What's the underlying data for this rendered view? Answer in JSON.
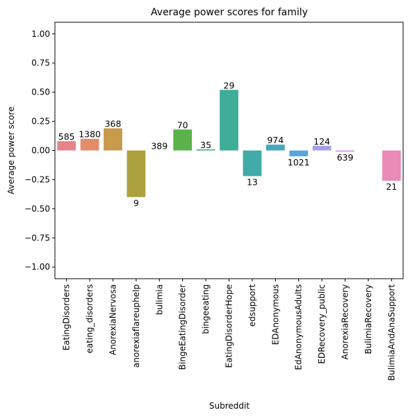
{
  "chart_data": {
    "type": "bar",
    "title": "Average power scores for family",
    "xlabel": "Subreddit",
    "ylabel": "Average power score",
    "ylim": [
      -1.1,
      1.1
    ],
    "yticks": [
      -1.0,
      -0.75,
      -0.5,
      -0.25,
      0.0,
      0.25,
      0.5,
      0.75,
      1.0
    ],
    "ytick_labels": [
      "−1.00",
      "−0.75",
      "−0.50",
      "−0.25",
      "0.00",
      "0.25",
      "0.50",
      "0.75",
      "1.00"
    ],
    "grid": false,
    "categories": [
      "EatingDisorders",
      "eating_disorders",
      "AnorexiaNervosa",
      "anorexiaflareuphelp",
      "bulimia",
      "BingeEatingDisorder",
      "bingeeating",
      "EatingDisorderHope",
      "edsupport",
      "EDAnonymous",
      "EdAnonymousAdults",
      "EDRecovery_public",
      "AnorexiaRecovery",
      "BulimiaRecovery",
      "BulimiaAndAnaSupport"
    ],
    "values": [
      0.08,
      0.1,
      0.19,
      -0.4,
      0.0,
      0.18,
      0.01,
      0.52,
      -0.22,
      0.05,
      -0.05,
      0.04,
      -0.01,
      0.0,
      -0.26
    ],
    "labels": [
      "585",
      "1380",
      "368",
      "9",
      "389",
      "70",
      "35",
      "29",
      "13",
      "974",
      "1021",
      "124",
      "639",
      "",
      "21"
    ],
    "colors": [
      "#e8838b",
      "#e28c69",
      "#c79a4c",
      "#aca13f",
      "#93a93d",
      "#5bb14a",
      "#3fb17b",
      "#3fad98",
      "#42aba9",
      "#46a9bb",
      "#58a6d8",
      "#a5a0e8",
      "#d08de8",
      "#e98ad0",
      "#e98ab7"
    ]
  }
}
